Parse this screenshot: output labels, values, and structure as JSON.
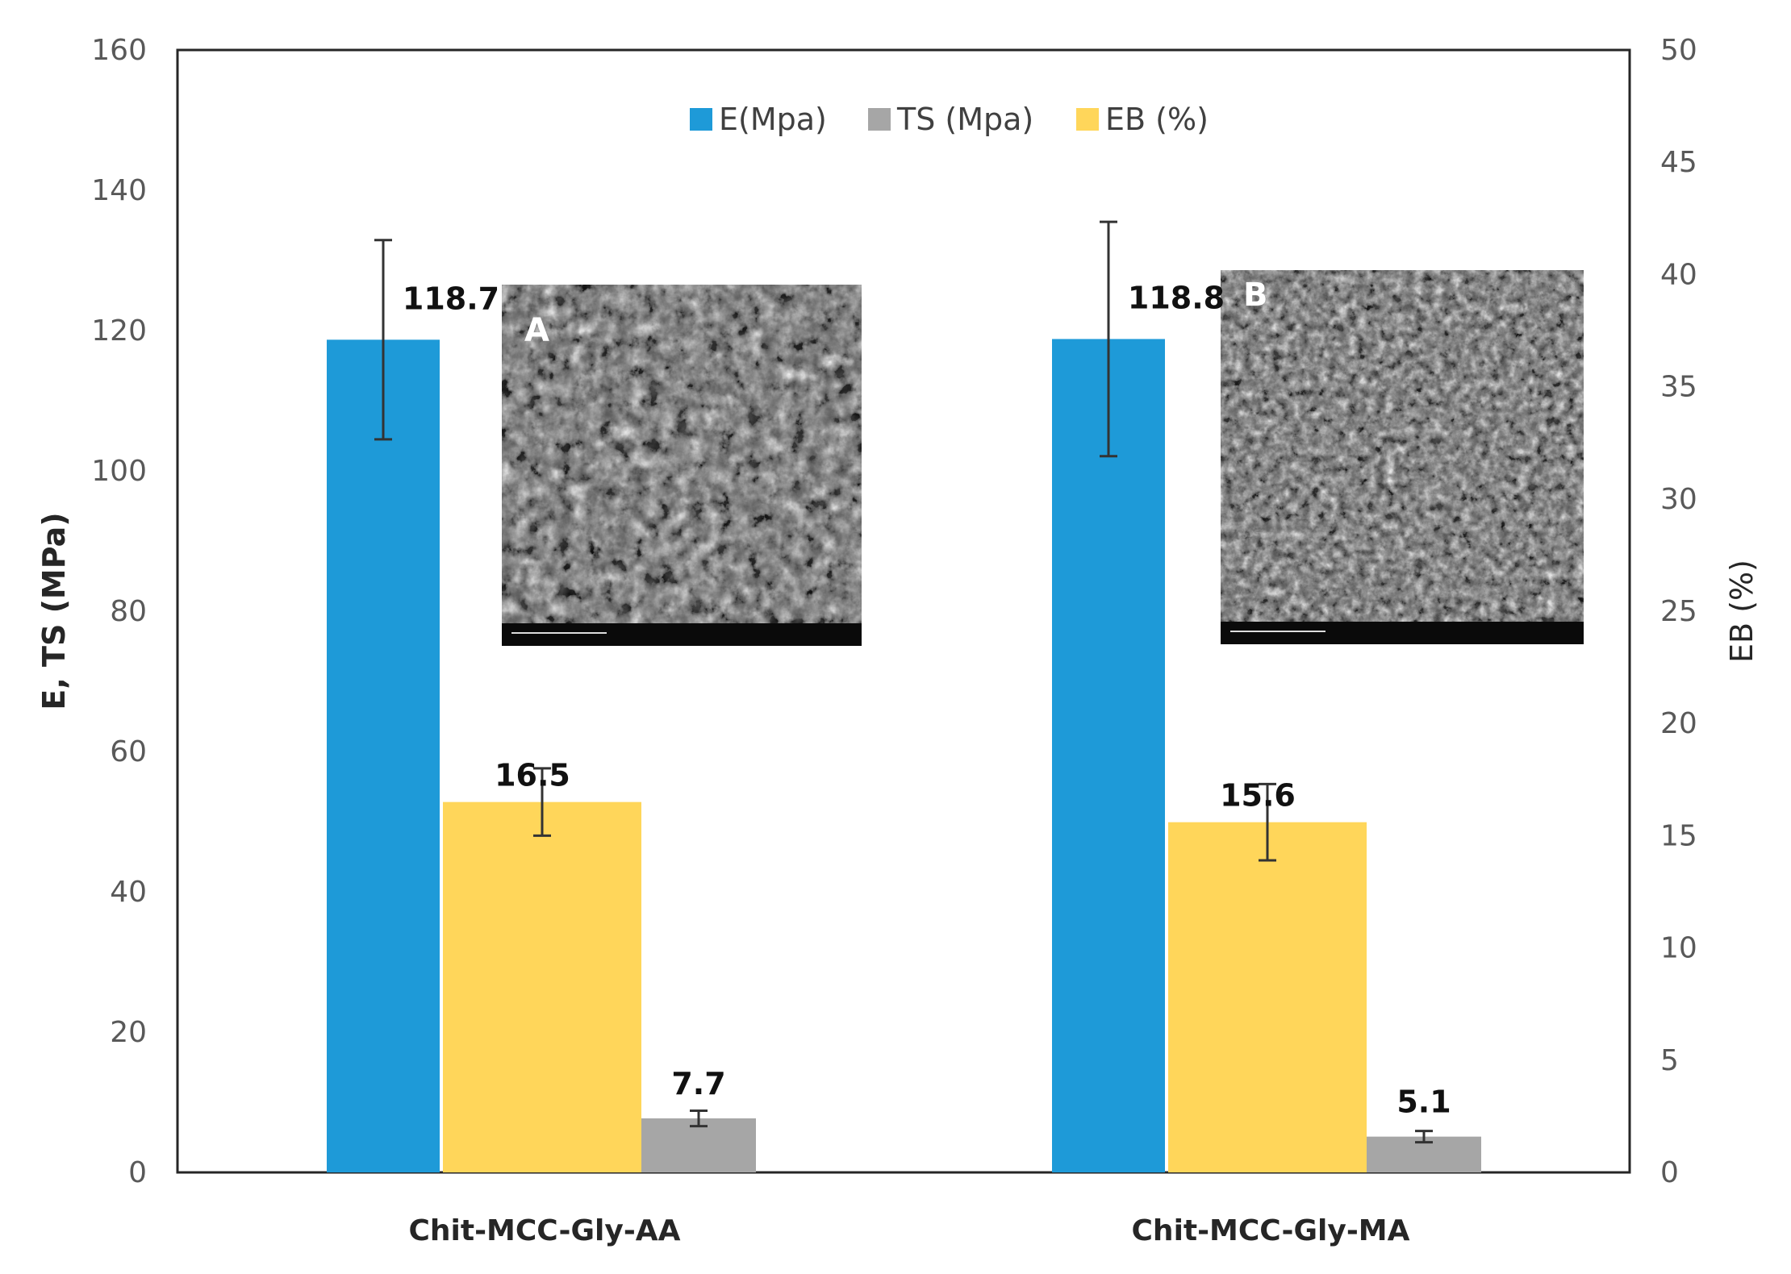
{
  "chart_data": {
    "type": "bar",
    "categories": [
      "Chit-MCC-Gly-AA",
      "Chit-MCC-Gly-MA"
    ],
    "series": [
      {
        "name": "E(Mpa)",
        "axis": "left",
        "color": "#1E9AD8",
        "values": [
          118.7,
          118.8
        ],
        "error": [
          14.2,
          16.7
        ],
        "labels": [
          "118.7",
          "118.8"
        ]
      },
      {
        "name": "TS (Mpa)",
        "axis": "left",
        "color": "#A6A6A6",
        "values": [
          7.7,
          5.1
        ],
        "error": [
          1.1,
          0.8
        ],
        "labels": [
          "7.7",
          "5.1"
        ]
      },
      {
        "name": "EB (%)",
        "axis": "right",
        "color": "#FFD65A",
        "values": [
          16.5,
          15.6
        ],
        "error": [
          1.5,
          1.7
        ],
        "labels": [
          "16.5",
          "15.6"
        ]
      }
    ],
    "legend_order": [
      "E(Mpa)",
      "TS (Mpa)",
      "EB (%)"
    ],
    "bar_draw_order": [
      "E(Mpa)",
      "EB (%)",
      "TS (Mpa)"
    ],
    "ylabel": "E, TS (MPa)",
    "ylim": [
      0,
      160
    ],
    "yticks": [
      0,
      20,
      40,
      60,
      80,
      100,
      120,
      140,
      160
    ],
    "y2label": "EB (%)",
    "y2lim": [
      0,
      50
    ],
    "y2ticks": [
      0,
      5,
      10,
      15,
      20,
      25,
      30,
      35,
      40,
      45,
      50
    ],
    "legend_position": "top-center",
    "grid": false,
    "insets": [
      {
        "label": "A",
        "category": "Chit-MCC-Gly-AA"
      },
      {
        "label": "B",
        "category": "Chit-MCC-Gly-MA"
      }
    ]
  }
}
